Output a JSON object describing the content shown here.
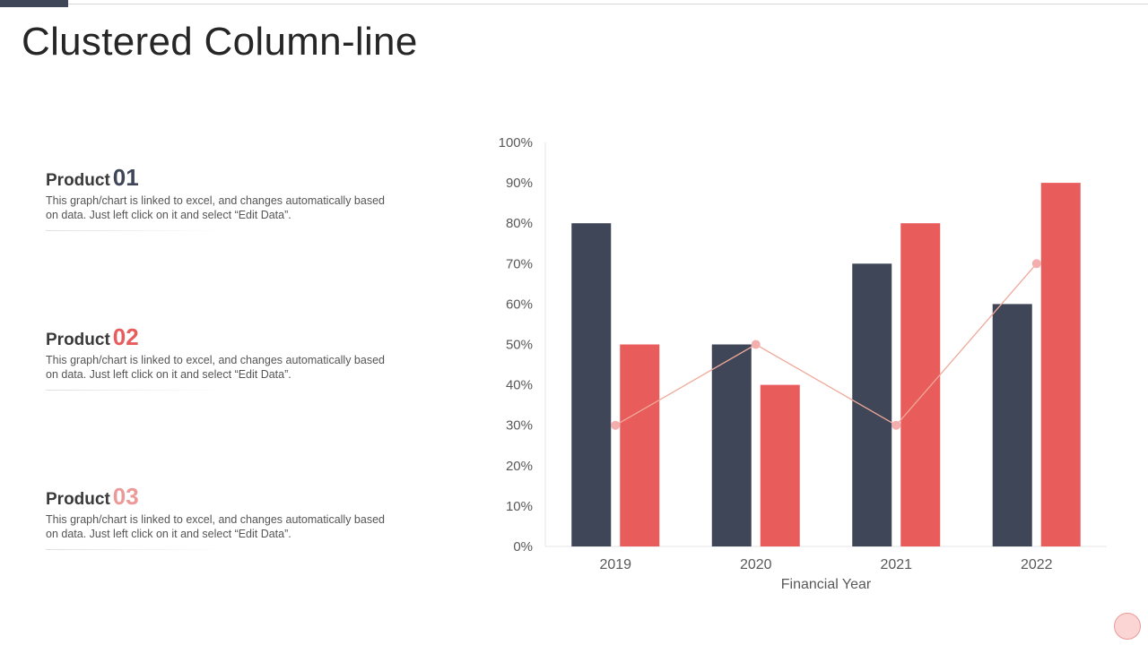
{
  "page": {
    "title": "Clustered Column-line"
  },
  "products": [
    {
      "label": "Product",
      "number": "01",
      "color": "#3f4658",
      "description": "This graph/chart is linked to excel, and changes automatically based on data. Just left click on it and select “Edit Data”."
    },
    {
      "label": "Product",
      "number": "02",
      "color": "#e85c5c",
      "description": "This graph/chart is linked to excel, and changes automatically based on data. Just left click on it and select “Edit Data”."
    },
    {
      "label": "Product",
      "number": "03",
      "color": "#eb9a99",
      "description": "This graph/chart is linked to excel, and changes automatically based on data. Just left click on it and select “Edit Data”."
    }
  ],
  "chart_data": {
    "type": "bar",
    "categories": [
      "2019",
      "2020",
      "2021",
      "2022"
    ],
    "series": [
      {
        "type": "bar",
        "color": "#3f4658",
        "values": [
          80,
          50,
          70,
          60
        ]
      },
      {
        "type": "bar",
        "color": "#e85c5c",
        "values": [
          50,
          40,
          80,
          90
        ]
      },
      {
        "type": "line",
        "color": "#f0a999",
        "values": [
          30,
          50,
          30,
          70
        ]
      }
    ],
    "xlabel": "Financial Year",
    "ylabel": "",
    "ylim": [
      0,
      100
    ],
    "yticks": [
      "0%",
      "10%",
      "20%",
      "30%",
      "40%",
      "50%",
      "60%",
      "70%",
      "80%",
      "90%",
      "100%"
    ],
    "grid": false,
    "legend": "none"
  }
}
